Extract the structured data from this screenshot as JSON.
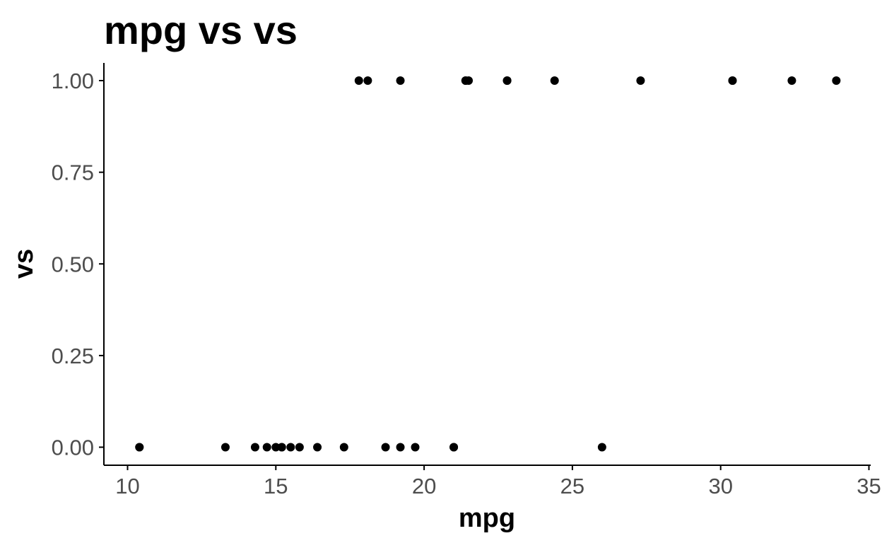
{
  "chart_data": {
    "type": "scatter",
    "title": "mpg vs vs",
    "xlabel": "mpg",
    "ylabel": "vs",
    "xlim": [
      9.3,
      35
    ],
    "ylim": [
      -0.05,
      1.05
    ],
    "x_ticks": [
      10,
      15,
      20,
      25,
      30,
      35
    ],
    "y_ticks": [
      0,
      0.25,
      0.5,
      0.75,
      1.0
    ],
    "x_tick_labels": [
      "10",
      "15",
      "20",
      "25",
      "30",
      "35"
    ],
    "y_tick_labels": [
      "0.00",
      "0.25",
      "0.50",
      "0.75",
      "1.00"
    ],
    "grid": false,
    "point_color": "#000000",
    "points": [
      {
        "x": 10.4,
        "y": 0
      },
      {
        "x": 10.4,
        "y": 0
      },
      {
        "x": 13.3,
        "y": 0
      },
      {
        "x": 14.3,
        "y": 0
      },
      {
        "x": 14.7,
        "y": 0
      },
      {
        "x": 15.0,
        "y": 0
      },
      {
        "x": 15.2,
        "y": 0
      },
      {
        "x": 15.2,
        "y": 0
      },
      {
        "x": 15.5,
        "y": 0
      },
      {
        "x": 15.8,
        "y": 0
      },
      {
        "x": 16.4,
        "y": 0
      },
      {
        "x": 17.3,
        "y": 0
      },
      {
        "x": 18.7,
        "y": 0
      },
      {
        "x": 19.2,
        "y": 0
      },
      {
        "x": 19.7,
        "y": 0
      },
      {
        "x": 21.0,
        "y": 0
      },
      {
        "x": 21.0,
        "y": 0
      },
      {
        "x": 26.0,
        "y": 0
      },
      {
        "x": 17.8,
        "y": 1
      },
      {
        "x": 18.1,
        "y": 1
      },
      {
        "x": 19.2,
        "y": 1
      },
      {
        "x": 21.4,
        "y": 1
      },
      {
        "x": 21.4,
        "y": 1
      },
      {
        "x": 21.5,
        "y": 1
      },
      {
        "x": 22.8,
        "y": 1
      },
      {
        "x": 22.8,
        "y": 1
      },
      {
        "x": 24.4,
        "y": 1
      },
      {
        "x": 27.3,
        "y": 1
      },
      {
        "x": 30.4,
        "y": 1
      },
      {
        "x": 30.4,
        "y": 1
      },
      {
        "x": 32.4,
        "y": 1
      },
      {
        "x": 33.9,
        "y": 1
      }
    ]
  }
}
